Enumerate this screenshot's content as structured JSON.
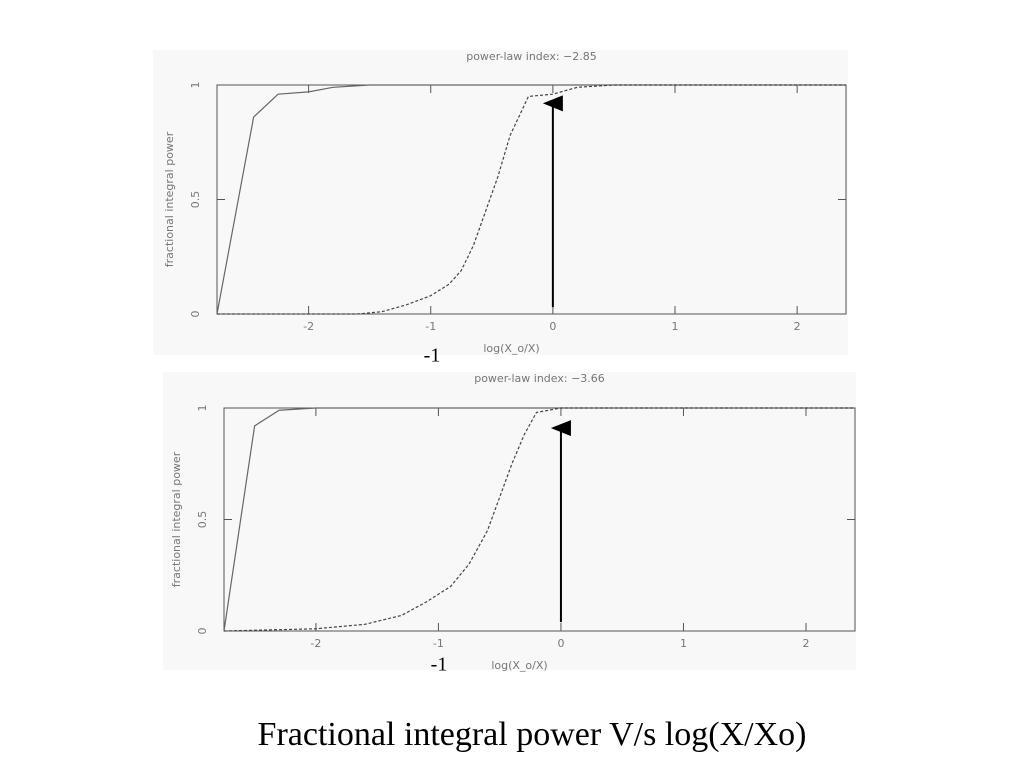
{
  "chart_data": [
    {
      "type": "line",
      "title": "power-law index: −2.85",
      "x_label": "log(X_o/X)",
      "y_label": "fractional integral power",
      "xlim": [
        -2.75,
        2.4
      ],
      "xticks": [
        -2,
        -1,
        0,
        1,
        2
      ],
      "ylim": [
        0,
        1
      ],
      "yticks": [
        0,
        0.5,
        1
      ],
      "series": [
        {
          "color": "#666666",
          "dash": false,
          "x": [
            -2.75,
            -2.45,
            -2.25,
            -2,
            -1.8,
            -1.5,
            2.4
          ],
          "values": [
            0,
            0.86,
            0.96,
            0.97,
            0.99,
            1,
            1
          ]
        },
        {
          "color": "#444444",
          "dash": true,
          "x": [
            -2.75,
            -1.6,
            -1.4,
            -1.2,
            -1.0,
            -0.85,
            -0.75,
            -0.65,
            -0.55,
            -0.45,
            -0.35,
            -0.2,
            0,
            0.2,
            0.5,
            2.4
          ],
          "values": [
            0,
            0,
            0.01,
            0.04,
            0.08,
            0.13,
            0.19,
            0.3,
            0.45,
            0.6,
            0.78,
            0.95,
            0.96,
            0.99,
            1,
            1
          ]
        }
      ],
      "arrow": {
        "x": 0,
        "y": [
          0.03,
          0.92
        ]
      },
      "annotation": "-1"
    },
    {
      "type": "line",
      "title": "power-law index: −3.66",
      "x_label": "log(X_o/X)",
      "y_label": "fractional integral power",
      "xlim": [
        -2.75,
        2.4
      ],
      "xticks": [
        -2,
        -1,
        0,
        1,
        2
      ],
      "ylim": [
        0,
        1
      ],
      "yticks": [
        0,
        0.5,
        1
      ],
      "series": [
        {
          "color": "#666666",
          "dash": false,
          "x": [
            -2.75,
            -2.5,
            -2.3,
            -2,
            2.4
          ],
          "values": [
            0,
            0.92,
            0.99,
            1,
            1
          ]
        },
        {
          "color": "#444444",
          "dash": true,
          "x": [
            -2.75,
            -2,
            -1.6,
            -1.3,
            -1.1,
            -0.9,
            -0.75,
            -0.6,
            -0.5,
            -0.4,
            -0.3,
            -0.2,
            0,
            2.4
          ],
          "values": [
            0,
            0.01,
            0.03,
            0.07,
            0.13,
            0.2,
            0.3,
            0.45,
            0.6,
            0.75,
            0.88,
            0.98,
            1,
            1
          ]
        }
      ],
      "arrow": {
        "x": 0,
        "y": [
          0.04,
          0.91
        ]
      },
      "annotation": "-1"
    }
  ],
  "caption": "Fractional integral power V/s log(X/Xo)"
}
